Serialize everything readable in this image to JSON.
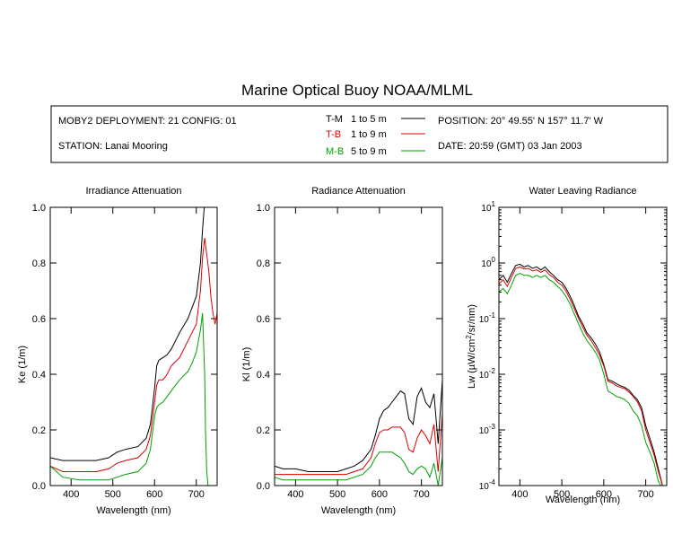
{
  "title": "Marine Optical Buoy NOAA/MLML",
  "info": {
    "deployment": "MOBY2 DEPLOYMENT: 21 CONFIG: 01",
    "station": "STATION: Lanai Mooring",
    "position": "POSITION: 20° 49.55' N   157° 11.7' W",
    "date": "DATE: 20:59 (GMT) 03 Jan 2003",
    "legend": [
      {
        "code": "T-M",
        "range": "1 to 5   m",
        "color": "#000000"
      },
      {
        "code": "T-B",
        "range": "1 to 9   m",
        "color": "#dd0000"
      },
      {
        "code": "M-B",
        "range": "5 to 9   m",
        "color": "#00a000"
      }
    ]
  },
  "colors": {
    "T-M": "#000000",
    "T-B": "#dd0000",
    "M-B": "#00a000"
  },
  "chart_data": [
    {
      "type": "line",
      "title": "Irradiance Attenuation",
      "xlabel": "Wavelength (nm)",
      "ylabel": "Ke  (1/m)",
      "xlim": [
        350,
        750
      ],
      "ylim": [
        0,
        1.0
      ],
      "xticks": [
        "400",
        "500",
        "600",
        "700"
      ],
      "yticks": [
        "0.0",
        "0.2",
        "0.4",
        "0.6",
        "0.8",
        "1.0"
      ],
      "series": [
        {
          "name": "T-M",
          "x": [
            350,
            380,
            420,
            460,
            490,
            510,
            530,
            560,
            580,
            590,
            600,
            605,
            610,
            620,
            630,
            640,
            660,
            680,
            690,
            700,
            710,
            715,
            720
          ],
          "y": [
            0.1,
            0.09,
            0.09,
            0.09,
            0.1,
            0.12,
            0.13,
            0.14,
            0.17,
            0.22,
            0.35,
            0.43,
            0.45,
            0.46,
            0.47,
            0.49,
            0.55,
            0.6,
            0.64,
            0.68,
            0.8,
            0.92,
            1.02
          ]
        },
        {
          "name": "T-B",
          "x": [
            350,
            380,
            420,
            460,
            490,
            510,
            530,
            560,
            580,
            590,
            600,
            605,
            610,
            620,
            630,
            640,
            660,
            680,
            690,
            700,
            710,
            715,
            720,
            725,
            730,
            735,
            740,
            745,
            750
          ],
          "y": [
            0.07,
            0.05,
            0.05,
            0.05,
            0.06,
            0.08,
            0.09,
            0.1,
            0.13,
            0.18,
            0.3,
            0.36,
            0.38,
            0.38,
            0.4,
            0.43,
            0.46,
            0.52,
            0.55,
            0.58,
            0.7,
            0.82,
            0.89,
            0.83,
            0.77,
            0.68,
            0.62,
            0.58,
            0.62
          ]
        },
        {
          "name": "M-B",
          "x": [
            350,
            380,
            420,
            460,
            490,
            510,
            530,
            560,
            580,
            590,
            600,
            605,
            610,
            620,
            630,
            640,
            660,
            680,
            690,
            700,
            705,
            710,
            715,
            720,
            722,
            725,
            728,
            730
          ],
          "y": [
            0.07,
            0.03,
            0.02,
            0.02,
            0.02,
            0.03,
            0.04,
            0.05,
            0.08,
            0.13,
            0.25,
            0.28,
            0.29,
            0.3,
            0.32,
            0.34,
            0.38,
            0.41,
            0.44,
            0.48,
            0.52,
            0.56,
            0.62,
            0.4,
            0.2,
            0.05,
            0.0,
            0.0
          ]
        }
      ]
    },
    {
      "type": "line",
      "title": "Radiance Attenuation",
      "xlabel": "Wavelength (nm)",
      "ylabel": "Kl  (1/m)",
      "xlim": [
        350,
        750
      ],
      "ylim": [
        0,
        1.0
      ],
      "xticks": [
        "400",
        "500",
        "600",
        "700"
      ],
      "yticks": [
        "0.0",
        "0.2",
        "0.4",
        "0.6",
        "0.8",
        "1.0"
      ],
      "series": [
        {
          "name": "T-M",
          "x": [
            350,
            370,
            400,
            430,
            460,
            480,
            500,
            520,
            540,
            560,
            580,
            590,
            600,
            610,
            620,
            630,
            640,
            650,
            660,
            670,
            680,
            690,
            700,
            710,
            720,
            730,
            740,
            750
          ],
          "y": [
            0.07,
            0.06,
            0.06,
            0.05,
            0.05,
            0.05,
            0.05,
            0.06,
            0.07,
            0.09,
            0.13,
            0.18,
            0.24,
            0.27,
            0.28,
            0.3,
            0.32,
            0.34,
            0.33,
            0.24,
            0.22,
            0.32,
            0.35,
            0.3,
            0.28,
            0.33,
            0.15,
            0.38
          ]
        },
        {
          "name": "T-B",
          "x": [
            350,
            370,
            400,
            430,
            460,
            480,
            500,
            520,
            540,
            560,
            580,
            590,
            600,
            610,
            620,
            630,
            640,
            650,
            660,
            670,
            680,
            690,
            700,
            710,
            720,
            730,
            740,
            750
          ],
          "y": [
            0.04,
            0.04,
            0.04,
            0.04,
            0.04,
            0.04,
            0.04,
            0.04,
            0.05,
            0.06,
            0.1,
            0.15,
            0.19,
            0.2,
            0.2,
            0.21,
            0.21,
            0.21,
            0.19,
            0.13,
            0.12,
            0.17,
            0.2,
            0.18,
            0.15,
            0.22,
            0.05,
            0.26
          ]
        },
        {
          "name": "M-B",
          "x": [
            350,
            370,
            400,
            430,
            460,
            480,
            500,
            520,
            540,
            560,
            580,
            590,
            600,
            610,
            620,
            630,
            640,
            650,
            660,
            670,
            680,
            690,
            700,
            710,
            720,
            730,
            740,
            750
          ],
          "y": [
            0.03,
            0.02,
            0.02,
            0.02,
            0.02,
            0.02,
            0.02,
            0.02,
            0.03,
            0.04,
            0.07,
            0.1,
            0.12,
            0.12,
            0.12,
            0.12,
            0.11,
            0.1,
            0.08,
            0.05,
            0.04,
            0.06,
            0.07,
            0.06,
            0.03,
            0.08,
            0.0,
            0.1
          ]
        }
      ]
    },
    {
      "type": "line",
      "title": "Water Leaving Radiance",
      "xlabel": "Wavelength (nm)",
      "ylabel": "Lw  (µW/cm²/sr/nm)",
      "xlim": [
        350,
        750
      ],
      "ylim": [
        0.0001,
        10
      ],
      "yscale": "log",
      "xticks": [
        "400",
        "500",
        "600",
        "700"
      ],
      "yticks": [
        "10^-4",
        "10^-3",
        "10^-2",
        "10^-1",
        "10^0",
        "10^1"
      ],
      "series": [
        {
          "name": "T-M",
          "x": [
            350,
            360,
            370,
            380,
            390,
            400,
            410,
            420,
            430,
            440,
            450,
            460,
            470,
            480,
            490,
            500,
            510,
            520,
            530,
            540,
            550,
            560,
            570,
            580,
            590,
            600,
            610,
            620,
            630,
            640,
            650,
            660,
            670,
            680,
            690,
            700,
            710,
            720,
            730,
            740,
            750
          ],
          "y": [
            0.5,
            0.6,
            0.45,
            0.65,
            0.9,
            0.95,
            0.85,
            0.9,
            0.8,
            0.85,
            0.75,
            0.85,
            0.7,
            0.6,
            0.5,
            0.45,
            0.35,
            0.25,
            0.17,
            0.11,
            0.08,
            0.055,
            0.045,
            0.035,
            0.025,
            0.015,
            0.008,
            0.0075,
            0.0068,
            0.0062,
            0.0058,
            0.0052,
            0.0042,
            0.0035,
            0.0025,
            0.0012,
            0.0007,
            0.0004,
            0.0002,
            0.0001,
            5e-05
          ]
        },
        {
          "name": "T-B",
          "x": [
            350,
            360,
            370,
            380,
            390,
            400,
            410,
            420,
            430,
            440,
            450,
            460,
            470,
            480,
            490,
            500,
            510,
            520,
            530,
            540,
            550,
            560,
            570,
            580,
            590,
            600,
            610,
            620,
            630,
            640,
            650,
            660,
            670,
            680,
            690,
            700,
            710,
            720,
            730,
            740,
            750
          ],
          "y": [
            0.42,
            0.5,
            0.38,
            0.55,
            0.8,
            0.85,
            0.78,
            0.8,
            0.72,
            0.75,
            0.68,
            0.75,
            0.62,
            0.55,
            0.45,
            0.4,
            0.31,
            0.22,
            0.15,
            0.1,
            0.07,
            0.05,
            0.04,
            0.03,
            0.022,
            0.014,
            0.0075,
            0.007,
            0.0062,
            0.0058,
            0.0055,
            0.0048,
            0.004,
            0.0032,
            0.0022,
            0.001,
            0.0006,
            0.00035,
            0.00018,
            0.0001,
            5e-05
          ]
        },
        {
          "name": "M-B",
          "x": [
            350,
            360,
            370,
            380,
            390,
            400,
            410,
            420,
            430,
            440,
            450,
            460,
            470,
            480,
            490,
            500,
            510,
            520,
            530,
            540,
            550,
            560,
            570,
            580,
            590,
            600,
            610,
            620,
            630,
            640,
            650,
            660,
            670,
            680,
            690,
            700,
            710,
            720,
            730,
            740,
            750
          ],
          "y": [
            0.3,
            0.35,
            0.28,
            0.4,
            0.6,
            0.65,
            0.6,
            0.6,
            0.55,
            0.6,
            0.55,
            0.6,
            0.5,
            0.45,
            0.38,
            0.32,
            0.25,
            0.18,
            0.12,
            0.08,
            0.055,
            0.04,
            0.032,
            0.025,
            0.018,
            0.01,
            0.005,
            0.0045,
            0.004,
            0.0038,
            0.0035,
            0.003,
            0.0022,
            0.0018,
            0.0012,
            0.0006,
            0.0004,
            0.00025,
            0.00012,
            8e-05,
            5e-05
          ]
        }
      ]
    }
  ]
}
